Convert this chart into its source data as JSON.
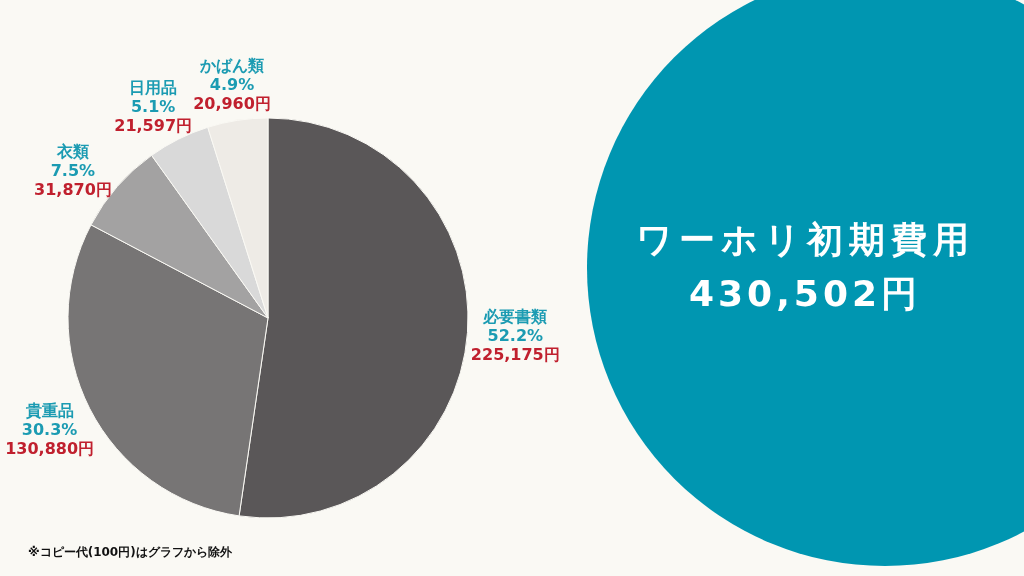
{
  "chart_data": {
    "type": "pie",
    "title": "ワーホリ初期費用",
    "subtitle": "430,502円",
    "categories": [
      "必要書類",
      "貴重品",
      "衣類",
      "日用品",
      "かばん類"
    ],
    "values": [
      225175,
      130880,
      31870,
      21597,
      20960
    ],
    "colors": [
      "#5a5758",
      "#777575",
      "#a3a2a2",
      "#d9d9d9",
      "#eeebe6"
    ],
    "value_labels": [
      "225,175円",
      "130,880円",
      "31,870円",
      "21,597円",
      "20,960円"
    ],
    "annotations": [
      {
        "text": "52.2%",
        "x": "必要書類"
      },
      {
        "text": "30.3%",
        "x": "貴重品"
      },
      {
        "text": "7.5%",
        "x": "衣類"
      },
      {
        "text": "5.1%",
        "x": "日用品"
      },
      {
        "text": "4.9%",
        "x": "かばん類"
      },
      "※コピー代(100円)はグラフから除外"
    ]
  }
}
